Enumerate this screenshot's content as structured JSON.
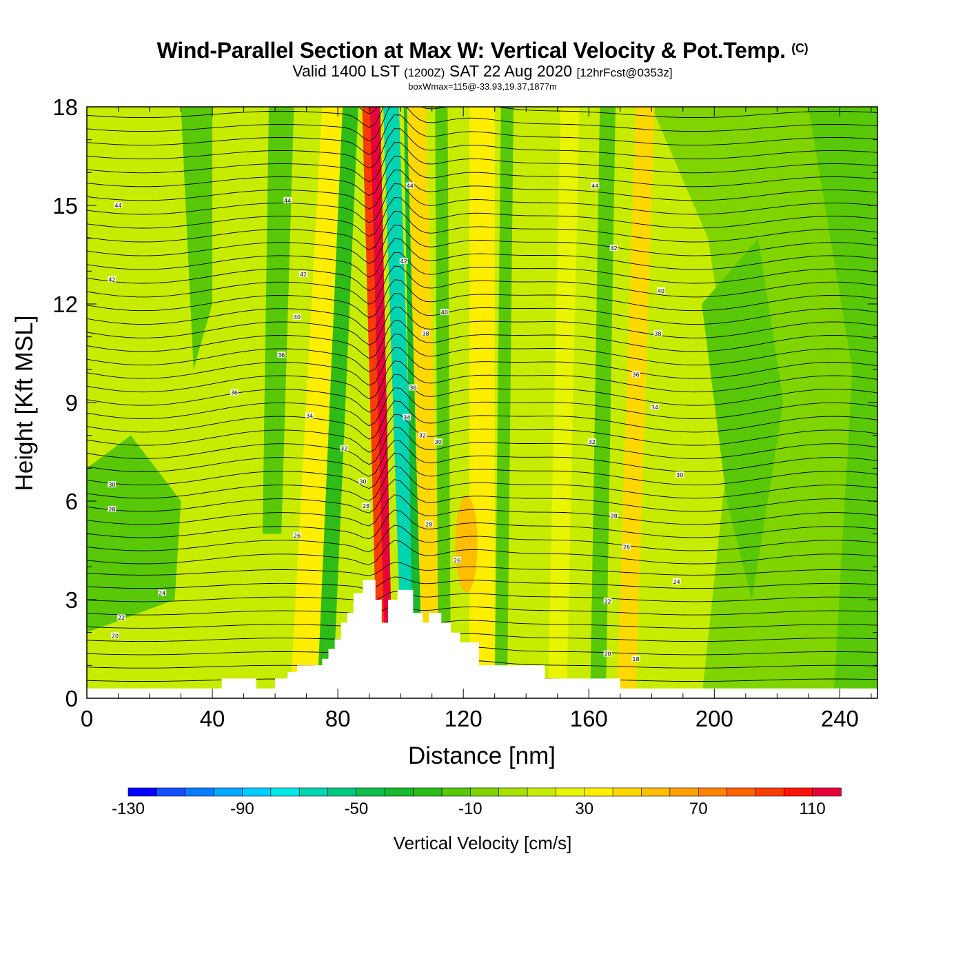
{
  "header": {
    "title": "Wind-Parallel Section at Max W: Vertical Velocity & Pot.Temp.",
    "copyright": "(C)",
    "valid_prefix": "Valid 1400 LST",
    "valid_utc": "(1200Z)",
    "valid_date": "SAT 22 Aug 2020",
    "forecast": "[12hrFcst@0353z]",
    "box_info": "boxWmax=115@-33.93,19.37,1877m"
  },
  "colors": {
    "background_field": "#b8e400",
    "plot_border": "#000000",
    "contour_line": "#000000"
  },
  "chart_data": {
    "type": "heatmap",
    "title": "Wind-Parallel Section at Max W: Vertical Velocity & Pot.Temp.",
    "xlabel": "Distance [nm]",
    "ylabel": "Height [Kft MSL]",
    "xlim": [
      0,
      252
    ],
    "ylim": [
      0,
      18
    ],
    "xticks": [
      0,
      40,
      80,
      120,
      160,
      200,
      240
    ],
    "yticks": [
      0,
      3,
      6,
      9,
      12,
      15,
      18
    ],
    "colorbar": {
      "title": "Vertical Velocity [cm/s]",
      "tick_labels": [
        "-130",
        "-90",
        "-50",
        "-10",
        "30",
        "70",
        "110"
      ],
      "levels": [
        -130,
        -120,
        -110,
        -100,
        -90,
        -80,
        -70,
        -60,
        -50,
        -40,
        -30,
        -20,
        -10,
        0,
        10,
        20,
        30,
        40,
        50,
        60,
        70,
        80,
        90,
        100,
        110,
        120
      ],
      "colors": [
        "#0000ff",
        "#1550ff",
        "#0a7cff",
        "#00a8ff",
        "#00ccff",
        "#00e8e8",
        "#00d4b0",
        "#00c880",
        "#10be50",
        "#18b830",
        "#30bc18",
        "#58c808",
        "#80d400",
        "#a8e000",
        "#c8ec00",
        "#e8f400",
        "#ffee00",
        "#ffd800",
        "#ffbe00",
        "#ffa000",
        "#ff8400",
        "#ff6400",
        "#ff3c00",
        "#ff1400",
        "#e8003c"
      ]
    },
    "contour_labels": [
      {
        "value": "44",
        "x": 10,
        "y": 15.0
      },
      {
        "value": "44",
        "x": 64,
        "y": 15.15
      },
      {
        "value": "44",
        "x": 103,
        "y": 15.6
      },
      {
        "value": "44",
        "x": 162,
        "y": 15.6
      },
      {
        "value": "42",
        "x": 8,
        "y": 12.75
      },
      {
        "value": "42",
        "x": 69,
        "y": 12.9
      },
      {
        "value": "42",
        "x": 101,
        "y": 13.3
      },
      {
        "value": "42",
        "x": 168,
        "y": 13.7
      },
      {
        "value": "40",
        "x": 67,
        "y": 11.6
      },
      {
        "value": "40",
        "x": 114,
        "y": 11.75
      },
      {
        "value": "40",
        "x": 183,
        "y": 12.4
      },
      {
        "value": "38",
        "x": 108,
        "y": 11.1
      },
      {
        "value": "38",
        "x": 182,
        "y": 11.1
      },
      {
        "value": "36",
        "x": 62,
        "y": 10.45
      },
      {
        "value": "36",
        "x": 104,
        "y": 9.45
      },
      {
        "value": "36",
        "x": 175,
        "y": 9.85
      },
      {
        "value": "36",
        "x": 47,
        "y": 9.3
      },
      {
        "value": "34",
        "x": 71,
        "y": 8.6
      },
      {
        "value": "34",
        "x": 102,
        "y": 8.55
      },
      {
        "value": "34",
        "x": 181,
        "y": 8.85
      },
      {
        "value": "32",
        "x": 82,
        "y": 7.6
      },
      {
        "value": "32",
        "x": 107,
        "y": 8.0
      },
      {
        "value": "32",
        "x": 161,
        "y": 7.8
      },
      {
        "value": "30",
        "x": 112,
        "y": 7.8
      },
      {
        "value": "30",
        "x": 88,
        "y": 6.6
      },
      {
        "value": "30",
        "x": 8,
        "y": 6.5
      },
      {
        "value": "30",
        "x": 189,
        "y": 6.8
      },
      {
        "value": "28",
        "x": 8,
        "y": 5.75
      },
      {
        "value": "28",
        "x": 89,
        "y": 5.85
      },
      {
        "value": "28",
        "x": 109,
        "y": 5.3
      },
      {
        "value": "28",
        "x": 168,
        "y": 5.55
      },
      {
        "value": "26",
        "x": 67,
        "y": 4.95
      },
      {
        "value": "26",
        "x": 118,
        "y": 4.2
      },
      {
        "value": "26",
        "x": 172,
        "y": 4.6
      },
      {
        "value": "24",
        "x": 24,
        "y": 3.2
      },
      {
        "value": "24",
        "x": 188,
        "y": 3.55
      },
      {
        "value": "22",
        "x": 11,
        "y": 2.45
      },
      {
        "value": "22",
        "x": 166,
        "y": 2.95
      },
      {
        "value": "20",
        "x": 9,
        "y": 1.9
      },
      {
        "value": "20",
        "x": 166,
        "y": 1.35
      },
      {
        "value": "18",
        "x": 175,
        "y": 1.2
      }
    ]
  }
}
